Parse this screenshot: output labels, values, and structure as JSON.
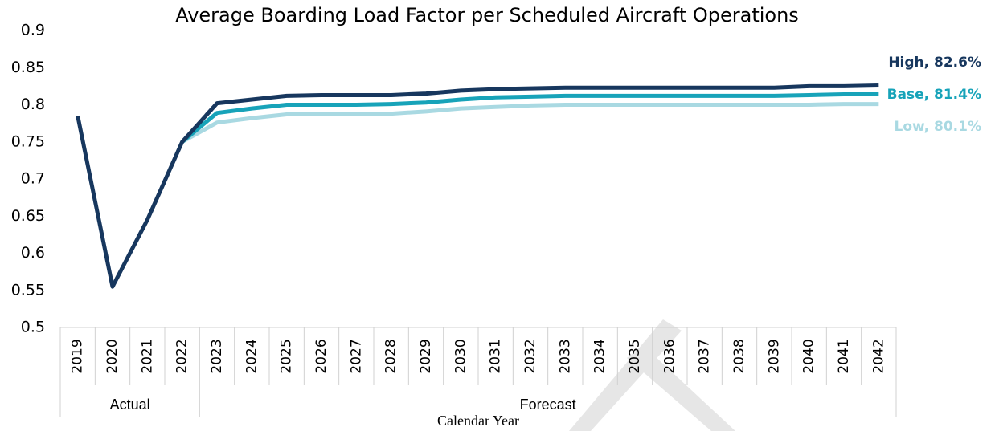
{
  "chart_data": {
    "type": "line",
    "title": "Average Boarding Load Factor per Scheduled Aircraft Operations",
    "x_label": "Calendar Year",
    "categories": [
      "2019",
      "2020",
      "2021",
      "2022",
      "2023",
      "2024",
      "2025",
      "2026",
      "2027",
      "2028",
      "2029",
      "2030",
      "2031",
      "2032",
      "2033",
      "2034",
      "2035",
      "2036",
      "2037",
      "2038",
      "2039",
      "2040",
      "2041",
      "2042"
    ],
    "groups": [
      {
        "label": "Actual",
        "start": "2019",
        "end": "2022"
      },
      {
        "label": "Forecast",
        "start": "2023",
        "end": "2042"
      }
    ],
    "series": [
      {
        "name": "High, 82.6%",
        "color": "#17375e",
        "values": [
          0.785,
          0.555,
          0.645,
          0.75,
          0.802,
          0.807,
          0.812,
          0.813,
          0.813,
          0.813,
          0.815,
          0.819,
          0.821,
          0.822,
          0.823,
          0.823,
          0.823,
          0.823,
          0.823,
          0.823,
          0.823,
          0.825,
          0.825,
          0.826
        ]
      },
      {
        "name": "Base, 81.4%",
        "color": "#17a3b9",
        "values": [
          null,
          null,
          null,
          0.75,
          0.789,
          0.795,
          0.8,
          0.8,
          0.8,
          0.801,
          0.803,
          0.807,
          0.81,
          0.811,
          0.812,
          0.812,
          0.812,
          0.812,
          0.812,
          0.812,
          0.812,
          0.813,
          0.814,
          0.814
        ]
      },
      {
        "name": "Low, 80.1%",
        "color": "#a9d9e2",
        "values": [
          null,
          null,
          null,
          0.75,
          0.776,
          0.782,
          0.787,
          0.787,
          0.788,
          0.788,
          0.791,
          0.795,
          0.797,
          0.799,
          0.8,
          0.8,
          0.8,
          0.8,
          0.8,
          0.8,
          0.8,
          0.8,
          0.801,
          0.801
        ]
      }
    ],
    "ylim": [
      0.5,
      0.9
    ],
    "yticks": [
      0.5,
      0.55,
      0.6,
      0.65,
      0.7,
      0.75,
      0.8,
      0.85,
      0.9
    ],
    "grid": false
  }
}
